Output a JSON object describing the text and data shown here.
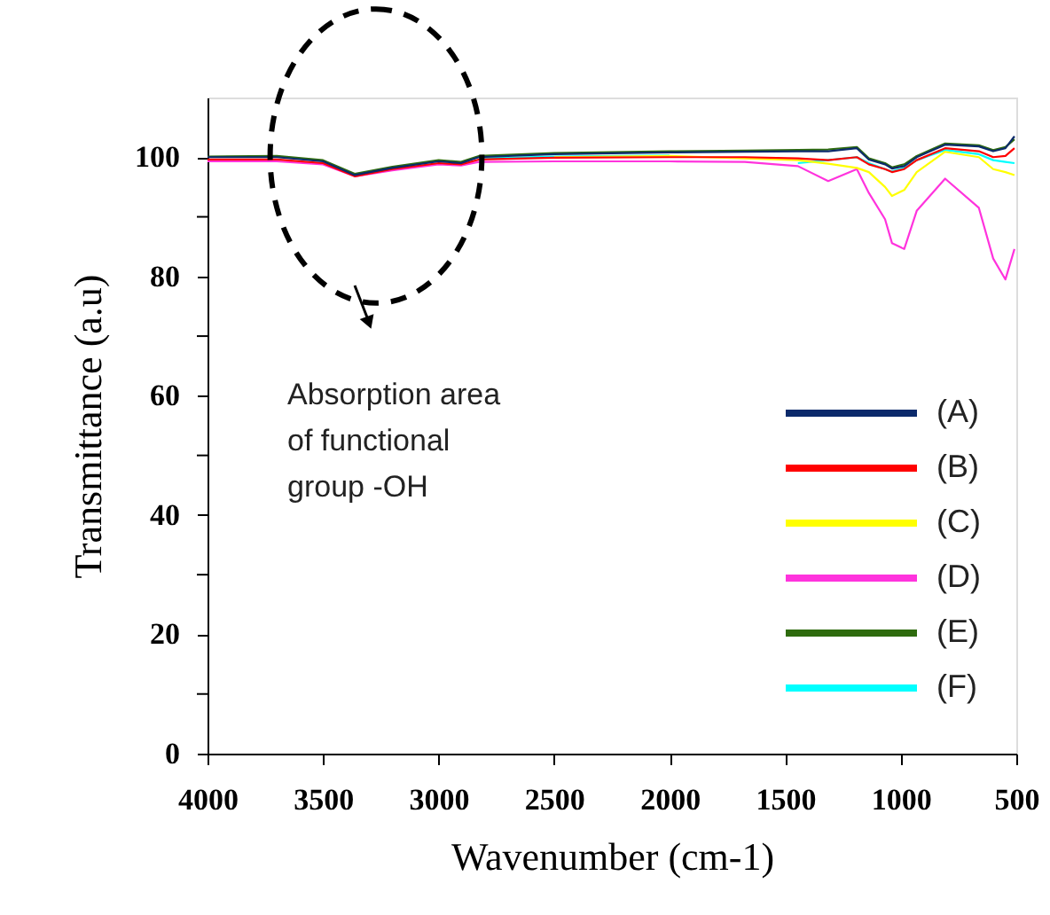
{
  "chart_data": {
    "type": "line",
    "xlabel": "Wavenumber (cm-1)",
    "ylabel": "Transmittance (a.u)",
    "x": [
      4000,
      3700,
      3500,
      3363,
      3200,
      3000,
      2903,
      2826,
      2500,
      2000,
      1675,
      1445,
      1314,
      1190,
      1138,
      1068,
      1038,
      985,
      931,
      808,
      662,
      600,
      547,
      508
    ],
    "series": [
      {
        "name": "(A)",
        "color": "#0b2a6b",
        "values": [
          100,
          100,
          99.3,
          97,
          98.2,
          99.3,
          99,
          100,
          100.5,
          100.8,
          100.9,
          101,
          101,
          101.5,
          99.6,
          98.8,
          98.1,
          98.5,
          100,
          102.1,
          101.8,
          101,
          101.5,
          103.5
        ]
      },
      {
        "name": "(B)",
        "color": "#ff0000",
        "values": [
          99.6,
          99.6,
          99,
          96.8,
          98,
          99,
          98.8,
          99.6,
          99.9,
          100,
          100,
          99.8,
          99.5,
          100,
          98.8,
          98,
          97.5,
          98,
          99.5,
          101.5,
          101,
          100,
          100.2,
          101.5
        ]
      },
      {
        "name": "(C)",
        "color": "#ffff00",
        "values": [
          null,
          null,
          null,
          null,
          null,
          null,
          null,
          null,
          100,
          100.2,
          99.8,
          99.5,
          98.9,
          98.2,
          97.5,
          95,
          93.5,
          94.5,
          97.5,
          100.9,
          100,
          98,
          97.5,
          97
        ]
      },
      {
        "name": "(D)",
        "color": "#ff33dd",
        "values": [
          99.3,
          99.3,
          98.8,
          96.8,
          97.8,
          98.8,
          98.6,
          99.2,
          99.3,
          99.3,
          99.2,
          98.5,
          96,
          98,
          94,
          89.6,
          85.6,
          84.6,
          91,
          96.4,
          91.5,
          83,
          79.5,
          84.6
        ]
      },
      {
        "name": "(E)",
        "color": "#2e6b0e",
        "values": [
          100.1,
          100.2,
          99.5,
          97.2,
          98.4,
          99.5,
          99.2,
          100.2,
          100.7,
          101,
          101.1,
          101.2,
          101.3,
          101.7,
          99.8,
          99,
          98.3,
          98.8,
          100.2,
          102.3,
          102,
          101.2,
          101.7,
          103
        ]
      },
      {
        "name": "(F)",
        "color": "#00ffff",
        "values": [
          null,
          null,
          null,
          null,
          null,
          null,
          null,
          99.8,
          100.1,
          100.3,
          null,
          99,
          99.5,
          100,
          99,
          98,
          97.6,
          98.2,
          99.5,
          101.2,
          100.5,
          99.5,
          99.2,
          99
        ]
      }
    ],
    "xlim": [
      4000,
      500
    ],
    "xticks": [
      4000,
      3500,
      3000,
      2500,
      2000,
      1500,
      1000,
      500
    ],
    "ylim": [
      0,
      110
    ],
    "yticks": [
      0,
      {
        "value": 10,
        "label": null
      },
      20,
      {
        "value": 30,
        "label": null
      },
      40,
      {
        "value": 50,
        "label": null
      },
      60,
      {
        "value": 70,
        "label": null
      },
      80,
      {
        "value": 90,
        "label": null
      },
      100
    ],
    "grid": false,
    "legend": "bottom right",
    "marker": "none",
    "line_style": "solid",
    "annotations": [
      "Absorption area of functional group -OH"
    ]
  }
}
